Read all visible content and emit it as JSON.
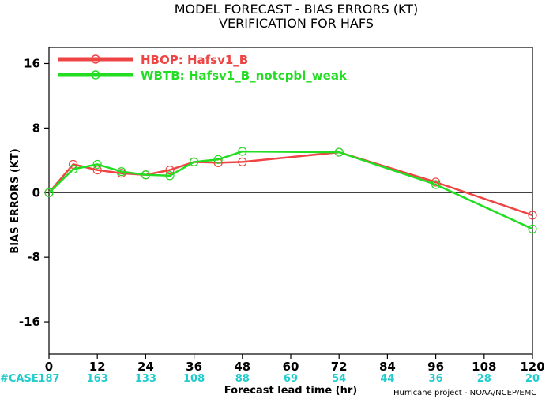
{
  "chart_data": {
    "type": "line",
    "title": "MODEL FORECAST - BIAS ERRORS (KT)",
    "subtitle": "VERIFICATION FOR HAFS",
    "xlabel": "Forecast lead time (hr)",
    "ylabel": "BIAS ERRORS (KT)",
    "xlim": [
      0,
      120
    ],
    "ylim": [
      -20,
      18
    ],
    "xticks": [
      0,
      12,
      24,
      36,
      48,
      60,
      72,
      84,
      96,
      108,
      120
    ],
    "yticks": [
      16,
      8,
      0,
      -8,
      -16
    ],
    "ytick_labels": [
      "16",
      "8",
      "0",
      "-8",
      "-16"
    ],
    "zero_line": true,
    "legend_position": "top-left",
    "series": [
      {
        "name": "HBOP: Hafsv1_B",
        "color": "#ee4444",
        "x": [
          0,
          6,
          12,
          18,
          24,
          30,
          36,
          42,
          48,
          72,
          96,
          120
        ],
        "y": [
          0.0,
          3.5,
          2.8,
          2.4,
          2.2,
          2.8,
          3.8,
          3.7,
          3.8,
          5.0,
          1.3,
          -2.8
        ]
      },
      {
        "name": "WBTB: Hafsv1_B_notcpbl_weak",
        "color": "#22dd22",
        "x": [
          0,
          6,
          12,
          18,
          24,
          30,
          36,
          42,
          48,
          72,
          96,
          120
        ],
        "y": [
          0.0,
          2.9,
          3.5,
          2.6,
          2.2,
          2.1,
          3.8,
          4.1,
          5.1,
          5.0,
          1.0,
          -4.5
        ]
      }
    ],
    "case_label": "#CASE",
    "case_counts": [
      "187",
      "163",
      "133",
      "108",
      "88",
      "69",
      "54",
      "44",
      "36",
      "28",
      "20"
    ],
    "case_color": "#22cccc"
  },
  "credit": "Hurricane project - NOAA/NCEP/EMC"
}
